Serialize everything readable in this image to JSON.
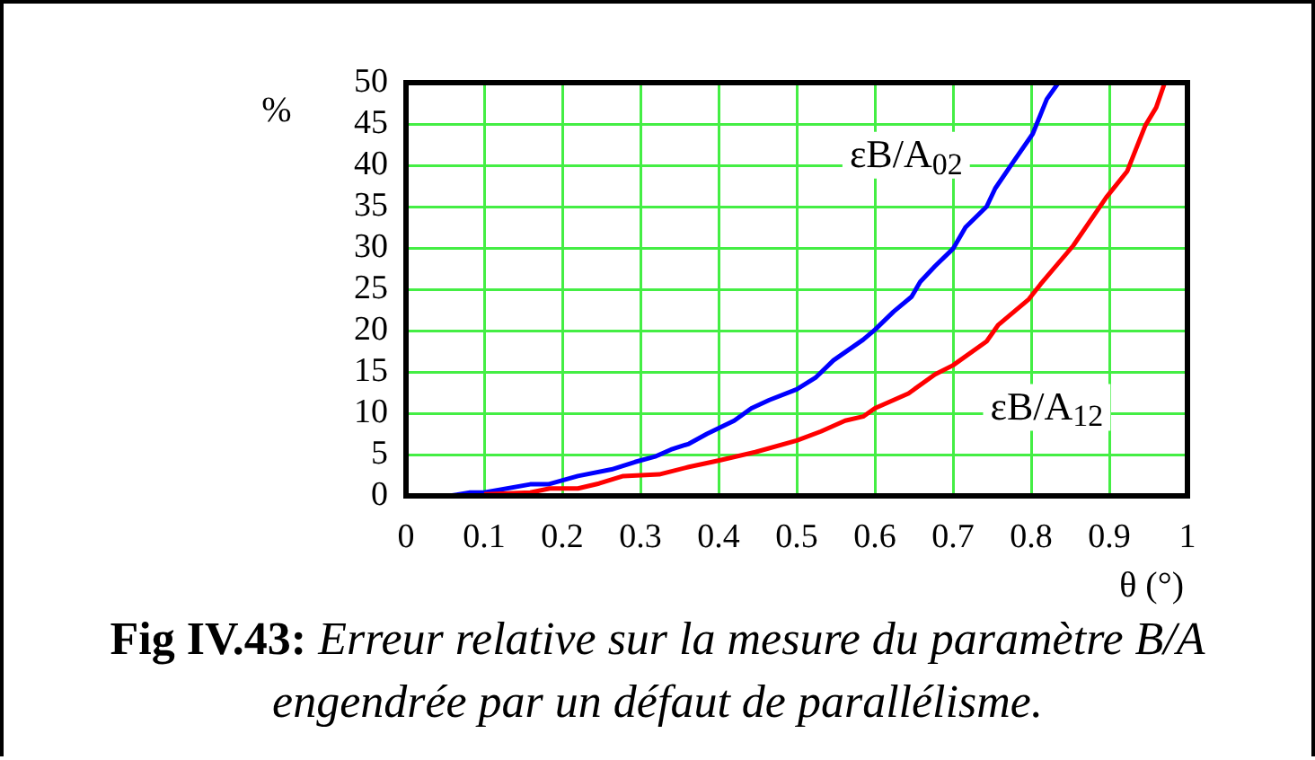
{
  "chart_data": {
    "type": "line",
    "title": "Fig IV.43: Erreur relative sur la mesure du paramètre B/A engendrée par un défaut de parallélisme.",
    "xlabel": "θ (°)",
    "ylabel": "%",
    "xlim": [
      0,
      1
    ],
    "xticks": [
      0,
      0.1,
      0.2,
      0.3,
      0.4,
      0.5,
      0.6,
      0.7,
      0.8,
      0.9,
      1
    ],
    "ylim": [
      0,
      50
    ],
    "yticks": [
      0,
      5,
      10,
      15,
      20,
      25,
      30,
      35,
      40,
      45,
      50
    ],
    "grid": true,
    "legend": false,
    "marker": "none",
    "line_style": "solid",
    "series": [
      {
        "name": "εB/A$_{02}$",
        "color": "#0000ff",
        "x": [
          0.055,
          0.082,
          0.1,
          0.159,
          0.182,
          0.22,
          0.263,
          0.293,
          0.32,
          0.339,
          0.362,
          0.385,
          0.42,
          0.442,
          0.465,
          0.5,
          0.524,
          0.547,
          0.585,
          0.6,
          0.624,
          0.647,
          0.658,
          0.677,
          0.7,
          0.716,
          0.743,
          0.754,
          0.777,
          0.802,
          0.82,
          0.835
        ],
        "values": [
          0,
          0.4,
          0.4,
          1.4,
          1.4,
          2.4,
          3.2,
          4.1,
          4.8,
          5.6,
          6.3,
          7.5,
          9.1,
          10.6,
          11.6,
          12.9,
          14.3,
          16.4,
          18.9,
          20.1,
          22.3,
          24.1,
          25.9,
          27.8,
          29.9,
          32.5,
          35,
          37.2,
          40.4,
          43.8,
          48,
          50
        ]
      },
      {
        "name": "εB/A$_{12}$",
        "color": "#ff0000",
        "x": [
          0.1,
          0.159,
          0.184,
          0.22,
          0.247,
          0.278,
          0.324,
          0.362,
          0.401,
          0.447,
          0.5,
          0.531,
          0.562,
          0.585,
          0.6,
          0.643,
          0.677,
          0.7,
          0.743,
          0.758,
          0.797,
          0.812,
          0.854,
          0.896,
          0.923,
          0.946,
          0.96,
          0.971
        ],
        "values": [
          0.2,
          0.4,
          0.9,
          0.9,
          1.5,
          2.4,
          2.6,
          3.5,
          4.3,
          5.3,
          6.7,
          7.8,
          9.1,
          9.6,
          10.6,
          12.4,
          14.7,
          15.8,
          18.7,
          20.7,
          23.8,
          25.6,
          30.3,
          36.1,
          39.3,
          44.8,
          47,
          50
        ]
      }
    ]
  }
}
